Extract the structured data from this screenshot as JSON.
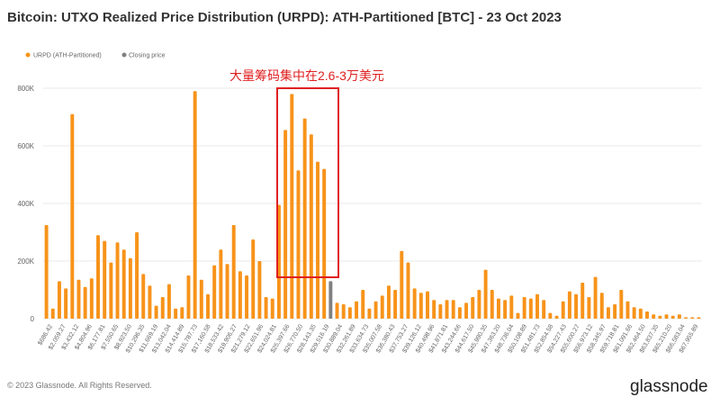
{
  "chart_data": {
    "type": "bar",
    "title": "Bitcoin: UTXO Realized Price Distribution (URPD): ATH-Partitioned [BTC] - 23 Oct 2023",
    "ylim": [
      0,
      800000
    ],
    "yticks": [
      "0",
      "200K",
      "400K",
      "600K",
      "800K"
    ],
    "grid": true,
    "legend_position": "top-left",
    "series": [
      {
        "name": "URPD (ATH-Partitioned)",
        "color": "#f7931a"
      },
      {
        "name": "Closing price",
        "color": "#808080"
      }
    ],
    "tick_labels": [
      "$686.42",
      "$2,059.27",
      "$3,432.12",
      "$4,804.96",
      "$6,177.81",
      "$7,550.65",
      "$8,923.50",
      "$10,296.35",
      "$11,669.19",
      "$13,042.04",
      "$14,414.89",
      "$15,787.73",
      "$17,160.58",
      "$18,533.42",
      "$19,906.27",
      "$21,279.12",
      "$22,651.96",
      "$24,024.81",
      "$25,397.66",
      "$26,770.50",
      "$28,143.35",
      "$29,516.19",
      "$30,889.04",
      "$32,261.89",
      "$33,634.73",
      "$35,007.58",
      "$36,380.43",
      "$37,753.27",
      "$39,126.12",
      "$40,498.96",
      "$41,871.81",
      "$43,244.66",
      "$44,617.50",
      "$45,990.35",
      "$47,363.20",
      "$48,736.04",
      "$50,108.89",
      "$51,481.73",
      "$52,854.58",
      "$54,227.43",
      "$55,600.27",
      "$56,973.12",
      "$58,345.97",
      "$59,718.81",
      "$61,091.66",
      "$62,464.50",
      "$63,837.35",
      "$65,210.20",
      "$66,583.04",
      "$67,955.89"
    ],
    "values": [
      325000,
      35000,
      130000,
      105000,
      710000,
      135000,
      110000,
      140000,
      290000,
      270000,
      195000,
      265000,
      240000,
      210000,
      300000,
      155000,
      115000,
      45000,
      75000,
      120000,
      35000,
      40000,
      150000,
      790000,
      135000,
      85000,
      185000,
      240000,
      190000,
      325000,
      165000,
      150000,
      275000,
      200000,
      75000,
      70000,
      395000,
      655000,
      780000,
      515000,
      695000,
      640000,
      545000,
      520000,
      130000,
      55000,
      50000,
      40000,
      60000,
      100000,
      35000,
      60000,
      80000,
      115000,
      100000,
      235000,
      195000,
      105000,
      90000,
      95000,
      65000,
      50000,
      65000,
      65000,
      40000,
      55000,
      75000,
      100000,
      170000,
      100000,
      70000,
      65000,
      80000,
      20000,
      75000,
      70000,
      85000,
      65000,
      20000,
      10000,
      60000,
      95000,
      85000,
      125000,
      75000,
      145000,
      90000,
      40000,
      50000,
      100000,
      60000,
      40000,
      35000,
      25000,
      15000,
      10000,
      15000,
      10000,
      15000,
      5000,
      5000,
      5000
    ],
    "closing_price_index": 44,
    "annotation": "大量筹码集中在2.6-3万美元"
  },
  "footer": {
    "copyright": "© 2023 Glassnode. All Rights Reserved.",
    "brand": "glassnode"
  }
}
